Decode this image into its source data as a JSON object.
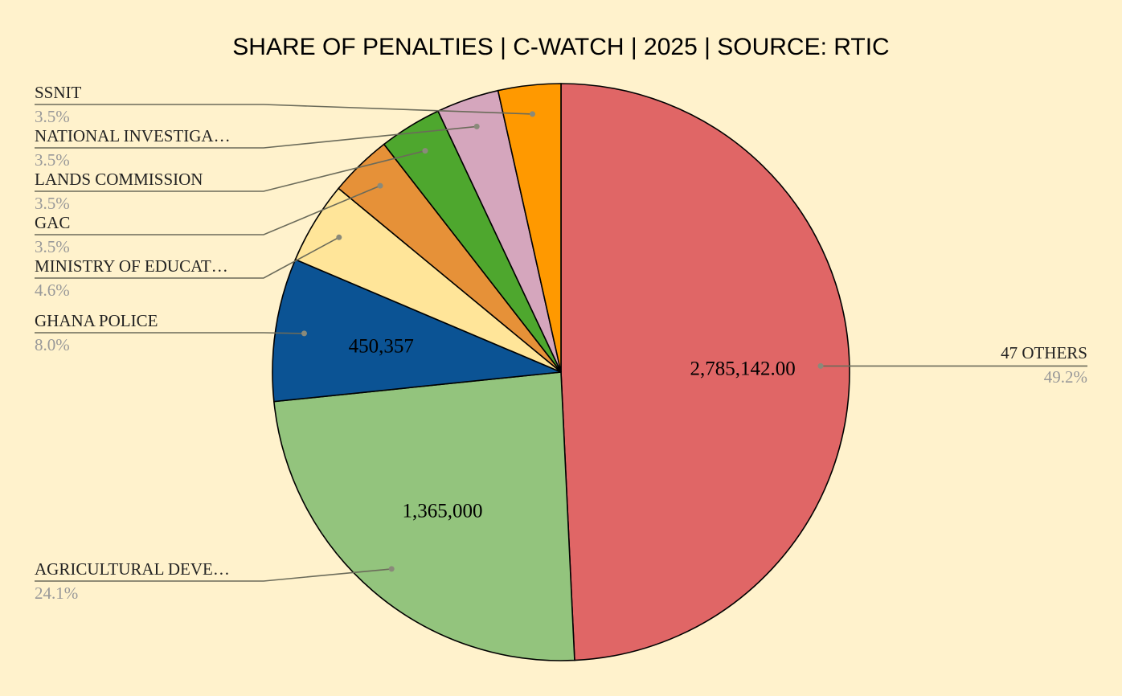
{
  "chart_data": {
    "type": "pie",
    "title": "SHARE OF PENALTIES | C-WATCH  | 2025 | SOURCE: RTIC",
    "slices": [
      {
        "label": "47 OTHERS",
        "percent": "49.2%",
        "share": 49.2,
        "value_label": "2,785,142.00",
        "color": "#E06666"
      },
      {
        "label": "AGRICULTURAL DEVE…",
        "percent": "24.1%",
        "share": 24.1,
        "value_label": "1,365,000",
        "color": "#93C47D"
      },
      {
        "label": "GHANA POLICE",
        "percent": "8.0%",
        "share": 8.0,
        "value_label": "450,357",
        "color": "#0B5394"
      },
      {
        "label": "MINISTRY OF EDUCAT…",
        "percent": "4.6%",
        "share": 4.6,
        "value_label": "",
        "color": "#FFE599"
      },
      {
        "label": "GAC",
        "percent": "3.5%",
        "share": 3.5,
        "value_label": "",
        "color": "#E69138"
      },
      {
        "label": "LANDS COMMISSION",
        "percent": "3.5%",
        "share": 3.5,
        "value_label": "",
        "color": "#4EA72E"
      },
      {
        "label": "NATIONAL INVESTIGA…",
        "percent": "3.5%",
        "share": 3.5,
        "value_label": "",
        "color": "#D5A6BD"
      },
      {
        "label": "SSNIT",
        "percent": "3.5%",
        "share": 3.5,
        "value_label": "",
        "color": "#FF9900"
      }
    ],
    "legend": "none",
    "background": "#FFF2CC"
  }
}
